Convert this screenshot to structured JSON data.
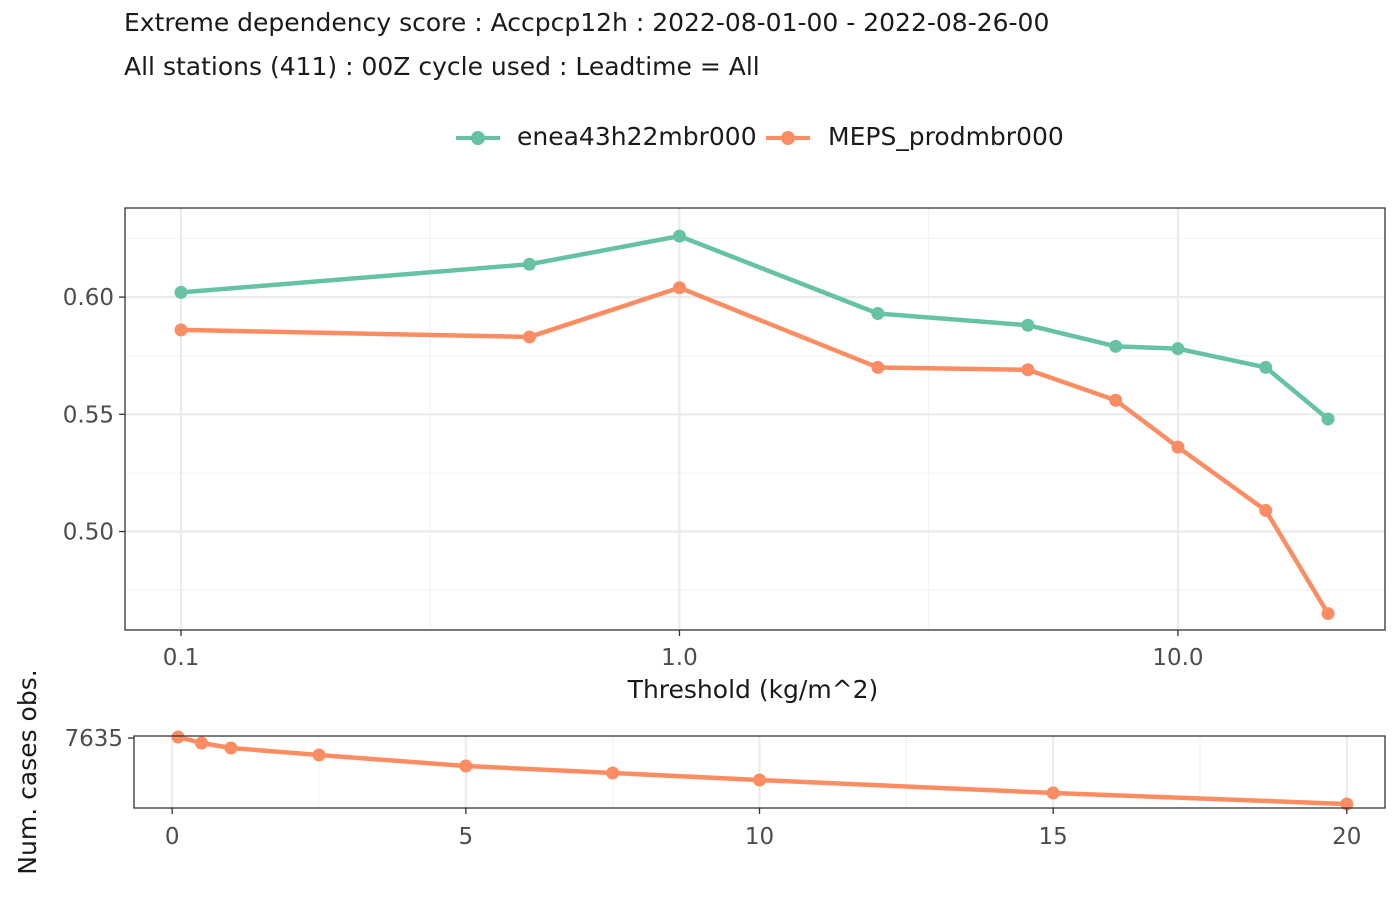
{
  "title": {
    "line1": "Extreme dependency score : Accpcp12h : 2022-08-01-00 - 2022-08-26-00",
    "line2": "All stations (411) : 00Z cycle used : Leadtime = All"
  },
  "colors": {
    "enea": "#66c2a5",
    "meps": "#fc8d62",
    "grid_major": "#ebebeb",
    "grid_minor": "#f3f3f3",
    "panel_border": "#333333",
    "tick_text": "#4d4d4d"
  },
  "chart_data": [
    {
      "type": "line",
      "title": "Extreme dependency score : Accpcp12h : 2022-08-01-00 - 2022-08-26-00",
      "subtitle": "All stations (411) : 00Z cycle used : Leadtime = All",
      "xlabel": "Threshold (kg/m^2)",
      "ylabel": "",
      "x_scale": "log10",
      "xlim": [
        0.1,
        20
      ],
      "ylim": [
        0.458,
        0.638
      ],
      "x_ticks": [
        0.1,
        1.0,
        10.0
      ],
      "x_tick_labels": [
        "0.1",
        "1.0",
        "10.0"
      ],
      "y_ticks": [
        0.5,
        0.55,
        0.6
      ],
      "y_tick_labels": [
        "0.50",
        "0.55",
        "0.60"
      ],
      "grid": true,
      "legend_position": "top",
      "x": [
        0.1,
        0.5,
        1,
        2.5,
        5,
        7.5,
        10,
        15,
        20
      ],
      "series": [
        {
          "name": "enea43h22mbr000",
          "color": "#66c2a5",
          "values": [
            0.602,
            0.614,
            0.626,
            0.593,
            0.588,
            0.579,
            0.578,
            0.57,
            0.548
          ]
        },
        {
          "name": "MEPS_prodmbr000",
          "color": "#fc8d62",
          "values": [
            0.586,
            0.583,
            0.604,
            0.57,
            0.569,
            0.556,
            0.536,
            0.509,
            0.465
          ]
        }
      ]
    },
    {
      "type": "line",
      "xlabel": "",
      "ylabel": "Num. cases obs.",
      "x_scale": "linear",
      "xlim": [
        -0.65,
        20.65
      ],
      "ylim": [
        7600,
        7636
      ],
      "x_ticks": [
        0,
        5,
        10,
        15,
        20
      ],
      "x_tick_labels": [
        "0",
        "5",
        "10",
        "15",
        "20"
      ],
      "y_ticks": [
        7635
      ],
      "y_tick_labels": [
        "7635"
      ],
      "grid": true,
      "x": [
        0.1,
        0.5,
        1,
        2.5,
        5,
        7.5,
        10,
        15,
        20
      ],
      "series": [
        {
          "name": "MEPS_prodmbr000",
          "color": "#fc8d62",
          "values": [
            7635.5,
            7632.5,
            7630,
            7626.5,
            7621,
            7617.5,
            7614,
            7607.5,
            7602
          ]
        }
      ]
    }
  ]
}
